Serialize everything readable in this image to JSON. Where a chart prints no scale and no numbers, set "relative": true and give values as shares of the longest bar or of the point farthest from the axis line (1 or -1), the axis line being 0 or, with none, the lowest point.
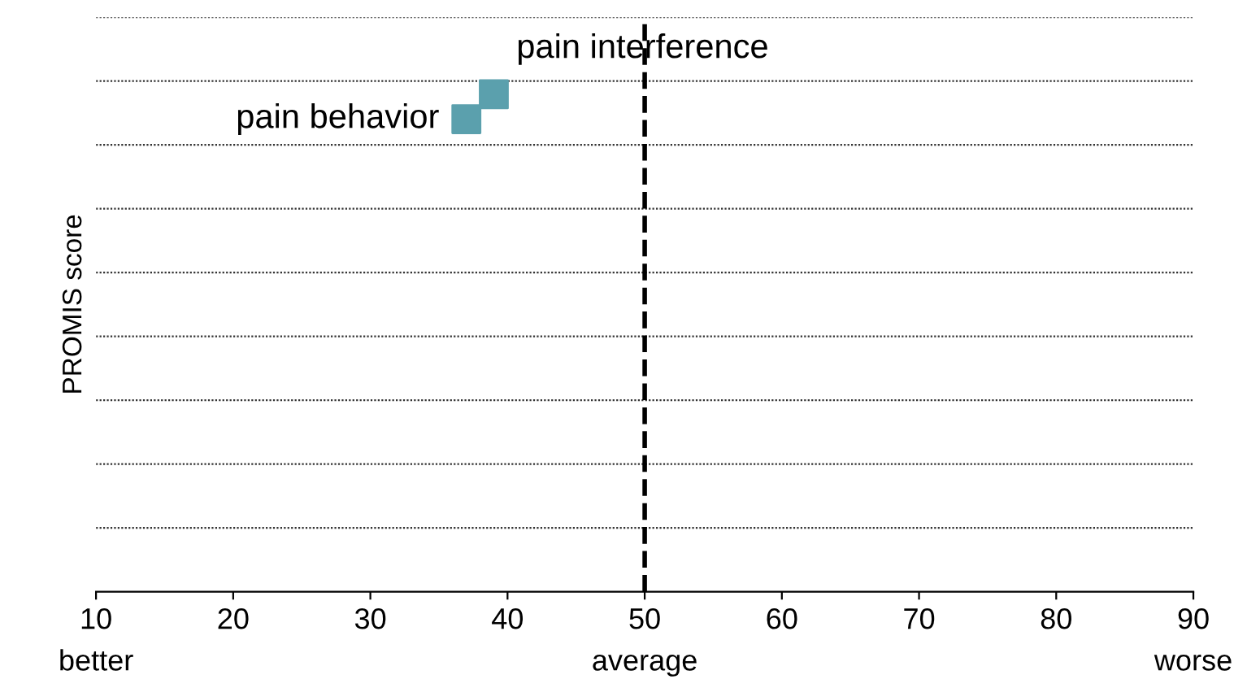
{
  "chart_data": {
    "type": "scatter",
    "ylabel": "PROMIS score",
    "relative": true,
    "marker": "square",
    "grid": "y",
    "xlim": [
      10,
      90
    ],
    "xticks": [
      10,
      20,
      30,
      40,
      50,
      60,
      70,
      80,
      90
    ],
    "series": [
      {
        "color": "#5ba0ad",
        "x": [
          39,
          37
        ],
        "values": [
          1,
          0.95
        ]
      }
    ],
    "annotations": [
      {
        "text": "pain interference",
        "x": 39,
        "y": 1
      },
      {
        "text": "pain behavior",
        "x": 37,
        "y": 0.95
      },
      "better",
      "average",
      "worse"
    ],
    "ref_lines": [
      {
        "axis": "x",
        "value": 50,
        "color": "#000000",
        "line_style": "dashed"
      }
    ]
  }
}
